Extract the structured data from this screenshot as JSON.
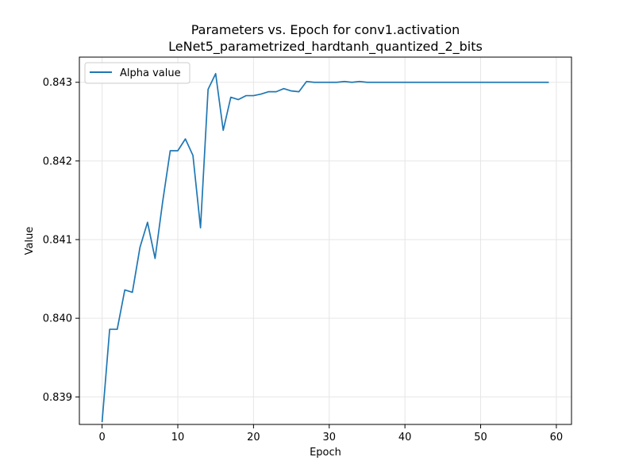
{
  "chart_data": {
    "type": "line",
    "title": "Parameters vs. Epoch for conv1.activation",
    "subtitle": "LeNet5_parametrized_hardtanh_quantized_2_bits",
    "xlabel": "Epoch",
    "ylabel": "Value",
    "xlim": [
      -3,
      62
    ],
    "ylim": [
      0.83865,
      0.84332
    ],
    "x_ticks": [
      0,
      10,
      20,
      30,
      40,
      50,
      60
    ],
    "y_ticks": [
      0.839,
      0.84,
      0.841,
      0.842,
      0.843
    ],
    "x_tick_labels": [
      "0",
      "10",
      "20",
      "30",
      "40",
      "50",
      "60"
    ],
    "y_tick_labels": [
      "0.839",
      "0.840",
      "0.841",
      "0.842",
      "0.843"
    ],
    "grid": true,
    "legend_position": "top-left",
    "colors": {
      "series": "#1f77b4",
      "grid": "#e6e6e6",
      "axes": "#000000"
    },
    "series": [
      {
        "name": "Alpha value",
        "x": [
          0,
          1,
          2,
          3,
          4,
          5,
          6,
          7,
          8,
          9,
          10,
          11,
          12,
          13,
          14,
          15,
          16,
          17,
          18,
          19,
          20,
          21,
          22,
          23,
          24,
          25,
          26,
          27,
          28,
          29,
          30,
          31,
          32,
          33,
          34,
          35,
          36,
          37,
          38,
          39,
          40,
          41,
          42,
          43,
          44,
          45,
          46,
          47,
          48,
          49,
          50,
          51,
          52,
          53,
          54,
          55,
          56,
          57,
          58,
          59
        ],
        "values": [
          0.83868,
          0.83986,
          0.83986,
          0.84036,
          0.84033,
          0.8409,
          0.84122,
          0.84076,
          0.84148,
          0.84213,
          0.84213,
          0.84228,
          0.84207,
          0.84115,
          0.84291,
          0.84311,
          0.84239,
          0.84281,
          0.84278,
          0.84283,
          0.84283,
          0.84285,
          0.84288,
          0.84288,
          0.84292,
          0.84289,
          0.84288,
          0.84301,
          0.843,
          0.843,
          0.843,
          0.843,
          0.84301,
          0.843,
          0.84301,
          0.843,
          0.843,
          0.843,
          0.843,
          0.843,
          0.843,
          0.843,
          0.843,
          0.843,
          0.843,
          0.843,
          0.843,
          0.843,
          0.843,
          0.843,
          0.843,
          0.843,
          0.843,
          0.843,
          0.843,
          0.843,
          0.843,
          0.843,
          0.843,
          0.843
        ]
      }
    ]
  }
}
